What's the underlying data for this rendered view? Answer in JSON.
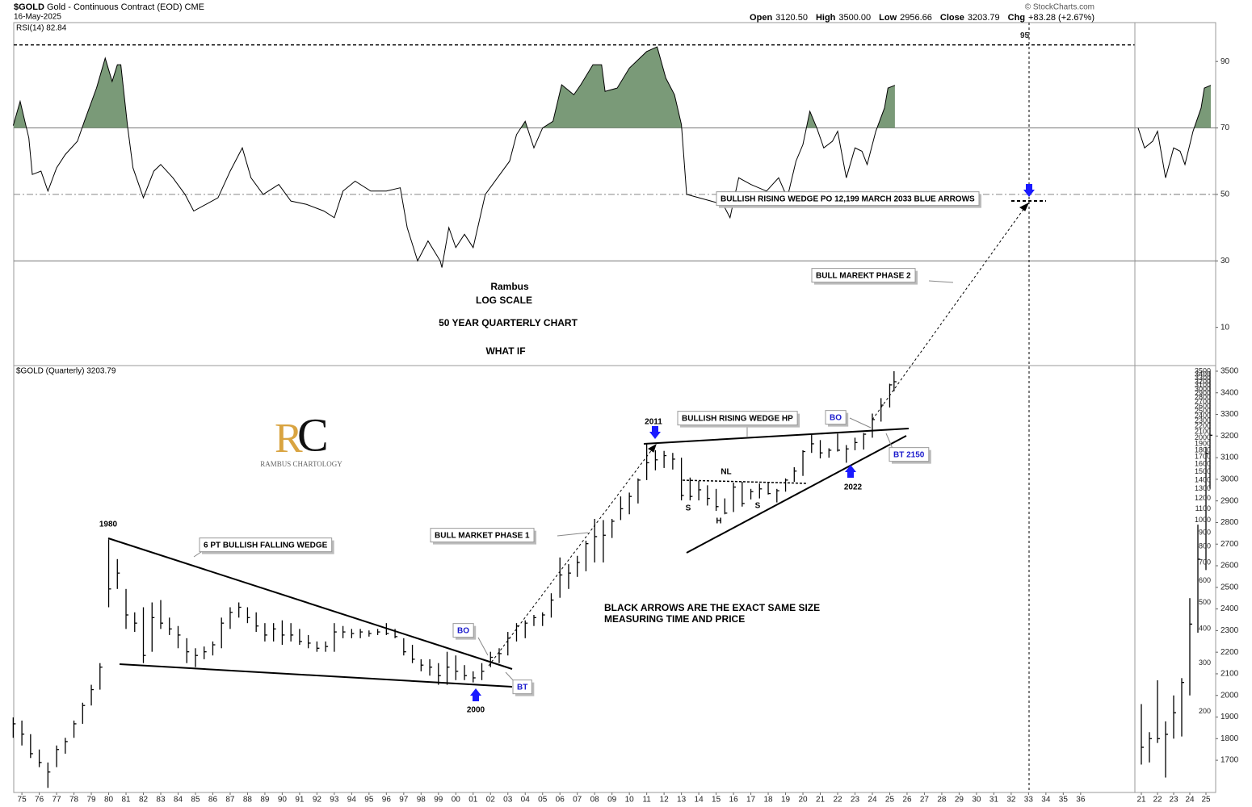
{
  "header": {
    "symbol": "$GOLD",
    "name": "Gold - Continuous Contract (EOD) CME",
    "date": "16-May-2025",
    "copyright": "© StockCharts.com",
    "stats": [
      {
        "label": "Open",
        "value": "3120.50"
      },
      {
        "label": "High",
        "value": "3500.00"
      },
      {
        "label": "Low",
        "value": "2956.66"
      },
      {
        "label": "Close",
        "value": "3203.79"
      },
      {
        "label": "Chg",
        "value": "+83.28 (+2.67%)"
      }
    ]
  },
  "logo": {
    "letters": [
      "R",
      "C"
    ],
    "text": "RAMBUS CHARTOLOGY"
  },
  "annotations": [
    "Rambus",
    "LOG SCALE",
    "50 YEAR QUARTERLY CHART",
    "WHAT IF",
    "1980",
    "6 PT BULLISH FALLING WEDGE",
    "BULL MARKET PHASE 1",
    "BO",
    "BT",
    "2000",
    "2011",
    "BULLISH RISING WEDGE HP",
    "NL",
    "S",
    "H",
    "S",
    "BO",
    "BT 2150",
    "2022",
    "BLACK ARROWS ARE THE EXACT SAME SIZE",
    "MEASURING TIME AND PRICE",
    "BULL MAREKT PHASE 2",
    "BULLISH RISING WEDGE PO 12,199  MARCH 2033 BLUE ARROWS"
  ],
  "chart_data": [
    {
      "type": "line",
      "title": "RSI(14) 82.84",
      "color": "#000000",
      "fill_color": "#7a9a78",
      "shade_above": 70,
      "reference_lines": [
        70,
        50,
        30
      ],
      "ref_line": 95,
      "xlim": [
        1974.53,
        2043.78
      ],
      "ylim": [
        -1.5,
        101.7
      ],
      "yticks": [
        10,
        30,
        50,
        70,
        90
      ],
      "x": [
        1974.5,
        1974.9,
        1975.4,
        1975.6,
        1976.1,
        1976.5,
        1977,
        1977.5,
        1978.2,
        1978.6,
        1979.3,
        1979.8,
        1980.2,
        1980.5,
        1980.7,
        1981.1,
        1981.4,
        1982,
        1982.6,
        1983,
        1983.7,
        1984.4,
        1984.9,
        1985.6,
        1986.3,
        1987,
        1987.7,
        1988.2,
        1988.9,
        1989.8,
        1990.5,
        1991.4,
        1992.4,
        1993,
        1993.5,
        1994.2,
        1995.1,
        1996,
        1996.8,
        1997.2,
        1997.8,
        1998.4,
        1999.1,
        1999.2,
        1999.6,
        2000,
        2000.5,
        2001,
        2001.7,
        2002.4,
        2003.1,
        2003.5,
        2004,
        2004.5,
        2005,
        2005.6,
        2006.1,
        2006.8,
        2007.2,
        2007.9,
        2008.4,
        2008.6,
        2009.3,
        2010,
        2011,
        2011.6,
        2012.1,
        2012.6,
        2013,
        2013.3,
        2014,
        2014.7,
        2015.4,
        2015.8,
        2016.3,
        2017,
        2017.9,
        2018.6,
        2019.1,
        2019.6,
        2020,
        2020.4,
        2020.8,
        2021.2,
        2021.7,
        2022,
        2022.5,
        2023,
        2023.4,
        2023.7,
        2024.2,
        2024.7,
        2024.9,
        2025.3
      ],
      "values": [
        70.7,
        78,
        67,
        56,
        57,
        51,
        58,
        62,
        66,
        72,
        82,
        91,
        84,
        89,
        89,
        70,
        58,
        49,
        57,
        59,
        55,
        50,
        45,
        47,
        49,
        57,
        64,
        55,
        50,
        53,
        48,
        47,
        45,
        43,
        51,
        54,
        51,
        51,
        52,
        40,
        30,
        36,
        30,
        28,
        40,
        34,
        38,
        34,
        50,
        55,
        60,
        68,
        72,
        64,
        70,
        72,
        83,
        80,
        83,
        89,
        89,
        81,
        82,
        88,
        93,
        94.4,
        85,
        80,
        71,
        50,
        49,
        48,
        47,
        43,
        55,
        53,
        51,
        55,
        49,
        60,
        65,
        75,
        70,
        64,
        66,
        69,
        55,
        64,
        63,
        59,
        69,
        76,
        82,
        82.84
      ]
    },
    {
      "type": "ohlc",
      "title": "$GOLD (Quarterly) 3203.79",
      "color": "#000000",
      "log_scale": true,
      "xlim": [
        1974.53,
        2043.78
      ],
      "ylim": [
        101,
        3670
      ],
      "yticks": [
        200,
        300,
        400,
        500,
        600,
        700,
        800,
        900,
        1000,
        1100,
        1200,
        1300,
        1400,
        1500,
        1600,
        1700,
        1800,
        1900,
        2000,
        2100,
        2200,
        2300,
        2400,
        2500,
        2600,
        2700,
        2800,
        2900,
        3000,
        3100,
        3200,
        3300,
        3400,
        3500
      ],
      "xticks": [
        {
          "value": 1975,
          "label": "75"
        },
        {
          "value": 1976,
          "label": "76"
        },
        {
          "value": 1977,
          "label": "77"
        },
        {
          "value": 1978,
          "label": "78"
        },
        {
          "value": 1979,
          "label": "79"
        },
        {
          "value": 1980,
          "label": "80"
        },
        {
          "value": 1981,
          "label": "81"
        },
        {
          "value": 1982,
          "label": "82"
        },
        {
          "value": 1983,
          "label": "83"
        },
        {
          "value": 1984,
          "label": "84"
        },
        {
          "value": 1985,
          "label": "85"
        },
        {
          "value": 1986,
          "label": "86"
        },
        {
          "value": 1987,
          "label": "87"
        },
        {
          "value": 1988,
          "label": "88"
        },
        {
          "value": 1989,
          "label": "89"
        },
        {
          "value": 1990,
          "label": "90"
        },
        {
          "value": 1991,
          "label": "91"
        },
        {
          "value": 1992,
          "label": "92"
        },
        {
          "value": 1993,
          "label": "93"
        },
        {
          "value": 1994,
          "label": "94"
        },
        {
          "value": 1995,
          "label": "95"
        },
        {
          "value": 1996,
          "label": "96"
        },
        {
          "value": 1997,
          "label": "97"
        },
        {
          "value": 1998,
          "label": "98"
        },
        {
          "value": 1999,
          "label": "99"
        },
        {
          "value": 2000,
          "label": "00"
        },
        {
          "value": 2001,
          "label": "01"
        },
        {
          "value": 2002,
          "label": "02"
        },
        {
          "value": 2003,
          "label": "03"
        },
        {
          "value": 2004,
          "label": "04"
        },
        {
          "value": 2005,
          "label": "05"
        },
        {
          "value": 2006,
          "label": "06"
        },
        {
          "value": 2007,
          "label": "07"
        },
        {
          "value": 2008,
          "label": "08"
        },
        {
          "value": 2009,
          "label": "09"
        },
        {
          "value": 2010,
          "label": "10"
        },
        {
          "value": 2011,
          "label": "11"
        },
        {
          "value": 2012,
          "label": "12"
        },
        {
          "value": 2013,
          "label": "13"
        },
        {
          "value": 2014,
          "label": "14"
        },
        {
          "value": 2015,
          "label": "15"
        },
        {
          "value": 2016,
          "label": "16"
        },
        {
          "value": 2017,
          "label": "17"
        },
        {
          "value": 2018,
          "label": "18"
        },
        {
          "value": 2019,
          "label": "19"
        },
        {
          "value": 2020,
          "label": "20"
        },
        {
          "value": 2021,
          "label": "21"
        },
        {
          "value": 2022,
          "label": "22"
        },
        {
          "value": 2023,
          "label": "23"
        },
        {
          "value": 2024,
          "label": "24"
        },
        {
          "value": 2025,
          "label": "25"
        },
        {
          "value": 2026,
          "label": "26"
        },
        {
          "value": 2027,
          "label": "27"
        },
        {
          "value": 2028,
          "label": "28"
        },
        {
          "value": 2029,
          "label": "29"
        },
        {
          "value": 2030,
          "label": "30"
        },
        {
          "value": 2031,
          "label": "31"
        },
        {
          "value": 2032,
          "label": "32"
        },
        {
          "value": 2033,
          "label": "33"
        },
        {
          "value": 2034,
          "label": "34"
        },
        {
          "value": 2035,
          "label": "35"
        },
        {
          "value": 2036,
          "label": "36"
        }
      ],
      "x": [
        1974.5,
        1975,
        1975.5,
        1976,
        1976.5,
        1977,
        1977.5,
        1978,
        1978.5,
        1979,
        1979.5,
        1980,
        1980.5,
        1981,
        1981.5,
        1982,
        1982.5,
        1983,
        1983.5,
        1984,
        1984.5,
        1985,
        1985.5,
        1986,
        1986.5,
        1987,
        1987.5,
        1988,
        1988.5,
        1989,
        1989.5,
        1990,
        1990.5,
        1991,
        1991.5,
        1992,
        1992.5,
        1993,
        1993.5,
        1994,
        1994.5,
        1995,
        1995.5,
        1996,
        1996.5,
        1997,
        1997.5,
        1998,
        1998.5,
        1999,
        1999.5,
        2000,
        2000.5,
        2001,
        2001.5,
        2002,
        2002.5,
        2003,
        2003.5,
        2004,
        2004.5,
        2005,
        2005.5,
        2006,
        2006.5,
        2007,
        2007.5,
        2008,
        2008.5,
        2009,
        2009.5,
        2010,
        2010.5,
        2011,
        2011.5,
        2012,
        2012.5,
        2013,
        2013.5,
        2014,
        2014.5,
        2015,
        2015.5,
        2016,
        2016.5,
        2017,
        2017.5,
        2018,
        2018.5,
        2019,
        2019.5,
        2020,
        2020.5,
        2021,
        2021.5,
        2022,
        2022.5,
        2023,
        2023.5,
        2024,
        2024.5,
        2025,
        2025.25
      ],
      "high": [
        190,
        185,
        165,
        145,
        130,
        150,
        160,
        185,
        215,
        250,
        300,
        850,
        720,
        560,
        460,
        480,
        500,
        510,
        440,
        410,
        370,
        340,
        345,
        360,
        440,
        480,
        500,
        480,
        460,
        420,
        420,
        430,
        420,
        400,
        380,
        360,
        360,
        420,
        410,
        400,
        400,
        395,
        400,
        420,
        400,
        370,
        350,
        310,
        310,
        300,
        330,
        320,
        295,
        280,
        300,
        330,
        340,
        390,
        420,
        430,
        450,
        460,
        540,
        730,
        690,
        740,
        840,
        1010,
        1000,
        1010,
        1220,
        1260,
        1420,
        1900,
        1800,
        1790,
        1760,
        1690,
        1430,
        1390,
        1340,
        1300,
        1200,
        1370,
        1380,
        1300,
        1360,
        1370,
        1300,
        1420,
        1560,
        1800,
        2070,
        1960,
        1830,
        2070,
        1880,
        2000,
        2080,
        2450,
        2790,
        3150,
        3500
      ],
      "low": [
        160,
        150,
        135,
        125,
        105,
        125,
        140,
        160,
        180,
        210,
        240,
        480,
        560,
        400,
        390,
        300,
        330,
        400,
        380,
        340,
        300,
        290,
        310,
        320,
        340,
        400,
        440,
        420,
        390,
        360,
        360,
        350,
        360,
        350,
        340,
        330,
        330,
        330,
        370,
        370,
        370,
        375,
        380,
        380,
        370,
        320,
        300,
        280,
        270,
        250,
        250,
        260,
        260,
        255,
        260,
        290,
        300,
        320,
        360,
        370,
        410,
        410,
        440,
        520,
        560,
        620,
        650,
        700,
        700,
        860,
        1000,
        1050,
        1150,
        1400,
        1520,
        1550,
        1530,
        1180,
        1180,
        1180,
        1130,
        1080,
        1050,
        1070,
        1120,
        1190,
        1200,
        1240,
        1160,
        1270,
        1380,
        1450,
        1760,
        1680,
        1690,
        1780,
        1620,
        1800,
        1810,
        2000,
        2290,
        2580,
        2956.66
      ],
      "close": [
        180,
        165,
        140,
        130,
        120,
        145,
        155,
        180,
        210,
        240,
        290,
        560,
        640,
        450,
        420,
        320,
        440,
        420,
        400,
        380,
        330,
        320,
        330,
        350,
        420,
        460,
        480,
        440,
        410,
        380,
        400,
        380,
        380,
        360,
        355,
        340,
        345,
        390,
        390,
        385,
        390,
        385,
        390,
        385,
        375,
        330,
        310,
        295,
        290,
        270,
        290,
        280,
        270,
        265,
        280,
        315,
        325,
        370,
        410,
        420,
        440,
        450,
        510,
        630,
        640,
        700,
        820,
        870,
        880,
        990,
        1100,
        1220,
        1400,
        1620,
        1660,
        1720,
        1670,
        1230,
        1220,
        1290,
        1200,
        1120,
        1060,
        1320,
        1150,
        1270,
        1300,
        1250,
        1280,
        1400,
        1510,
        1780,
        1900,
        1760,
        1800,
        1800,
        1820,
        1920,
        2060,
        2330,
        2630,
        3120,
        3203.79
      ]
    },
    {
      "type": "inset",
      "xlim": [
        2020.6,
        2025.6
      ],
      "ylim": [
        1551,
        3526
      ],
      "yticks": [
        1700,
        1800,
        1900,
        2000,
        2100,
        2200,
        2300,
        2400,
        2500,
        2600,
        2700,
        2800,
        2900,
        3000,
        3100,
        3200,
        3300,
        3400,
        3500
      ],
      "xticks": [
        {
          "value": 2021,
          "label": "21"
        },
        {
          "value": 2022,
          "label": "22"
        },
        {
          "value": 2023,
          "label": "23"
        },
        {
          "value": 2024,
          "label": "24"
        },
        {
          "value": 2025,
          "label": "25"
        }
      ]
    }
  ]
}
